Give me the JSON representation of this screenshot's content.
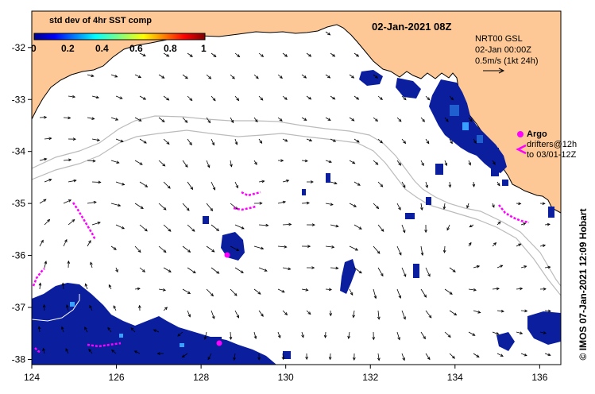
{
  "title": "02-Jan-2021 08Z",
  "colorbar": {
    "title": "std dev of 4hr SST comp",
    "ticks": [
      "0",
      "0.2",
      "0.4",
      "0.6",
      "0.8",
      "1"
    ],
    "range": [
      0,
      1
    ]
  },
  "current_info": {
    "line1": "NRT00 GSL",
    "line2": "02-Jan 00:00Z",
    "line3": "0.5m/s (1kt 24h)"
  },
  "legend": {
    "argo_label": "Argo",
    "drifters_label": "drifters@12h",
    "drifters_range": "to 03/01-12Z"
  },
  "credit": "© IMOS 07-Jan-2021 12:09 Hobart",
  "axes": {
    "x_ticks": [
      "124",
      "126",
      "128",
      "130",
      "132",
      "134",
      "136"
    ],
    "y_ticks": [
      "-32",
      "-33",
      "-34",
      "-35",
      "-36",
      "-37",
      "-38"
    ],
    "lon_range": [
      124,
      136.5
    ],
    "lat_range": [
      -38.1,
      -31.3
    ]
  },
  "colors": {
    "land": "#fdc896",
    "argo": "#ff00ff",
    "drifter": "#ff00ff",
    "isobath": "#bbbbbb",
    "low_std": "#0a1e9e"
  },
  "icons": [
    "argo-marker-icon",
    "drifter-track-icon",
    "current-scale-arrow-icon"
  ]
}
